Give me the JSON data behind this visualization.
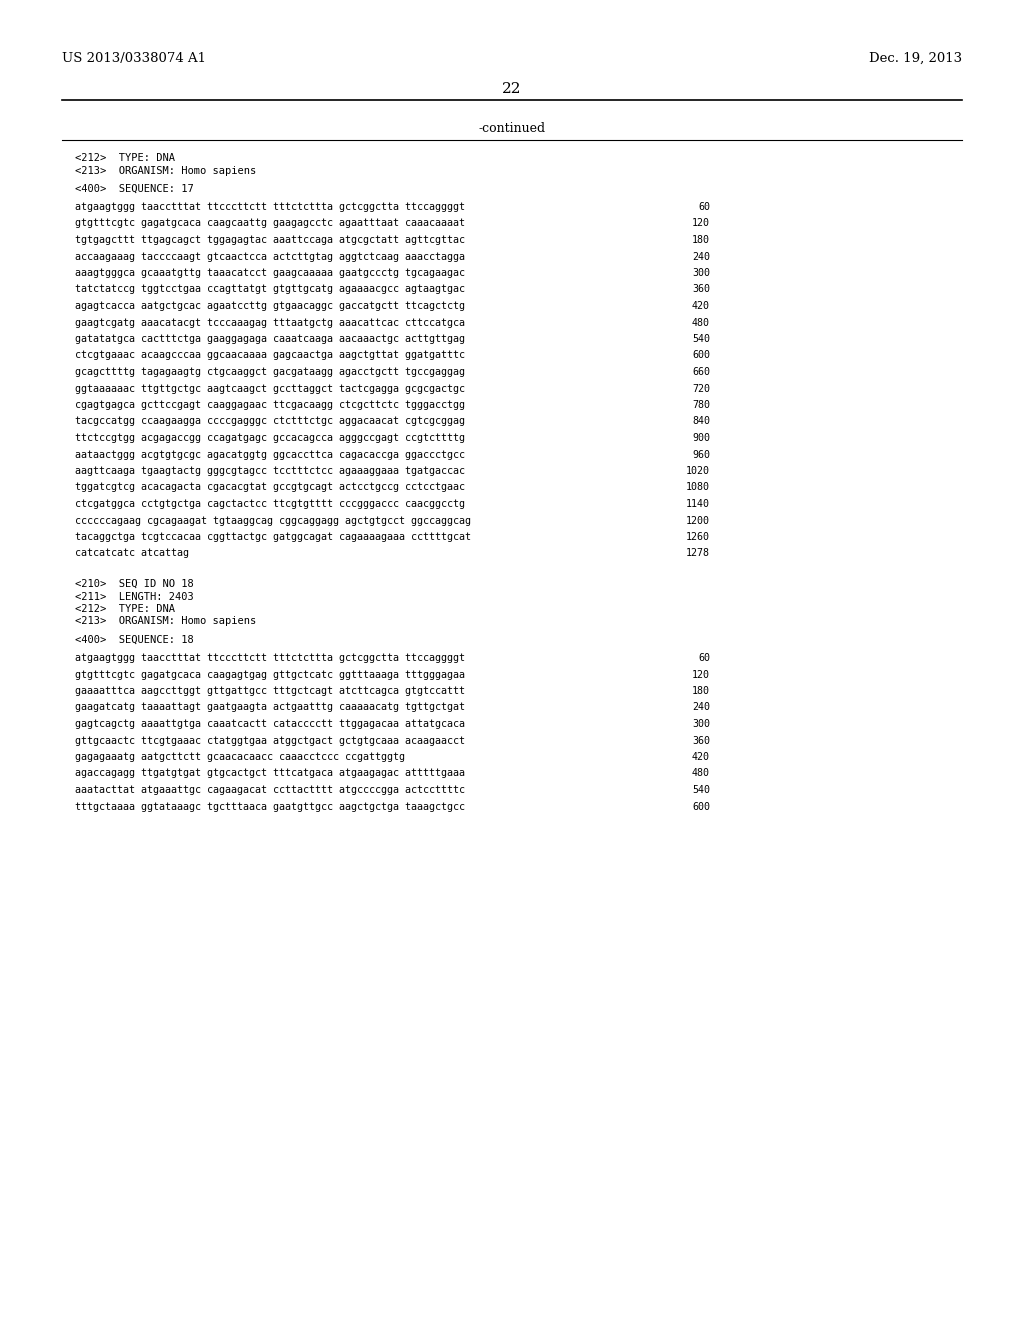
{
  "page_number": "22",
  "left_header": "US 2013/0338074 A1",
  "right_header": "Dec. 19, 2013",
  "continued_label": "-continued",
  "background_color": "#ffffff",
  "text_color": "#000000",
  "sections": [
    {
      "type": "meta",
      "lines": [
        "<212>  TYPE: DNA",
        "<213>  ORGANISM: Homo sapiens"
      ]
    },
    {
      "type": "sequence_header",
      "line": "<400>  SEQUENCE: 17"
    },
    {
      "type": "sequence",
      "entries": [
        [
          "atgaagtggg taacctttat ttcccttctt tttctcttta gctcggctta ttccaggggt",
          "60"
        ],
        [
          "gtgtttcgtc gagatgcaca caagcaattg gaagagcctc agaatttaat caaacaaaat",
          "120"
        ],
        [
          "tgtgagcttt ttgagcagct tggagagtac aaattccaga atgcgctatt agttcgttac",
          "180"
        ],
        [
          "accaagaaag taccccaagt gtcaactcca actcttgtag aggtctcaag aaacctagga",
          "240"
        ],
        [
          "aaagtgggca gcaaatgttg taaacatcct gaagcaaaaa gaatgccctg tgcagaagac",
          "300"
        ],
        [
          "tatctatccg tggtcctgaa ccagttatgt gtgttgcatg agaaaacgcc agtaagtgac",
          "360"
        ],
        [
          "agagtcacca aatgctgcac agaatccttg gtgaacaggc gaccatgctt ttcagctctg",
          "420"
        ],
        [
          "gaagtcgatg aaacatacgt tcccaaagag tttaatgctg aaacattcac cttccatgca",
          "480"
        ],
        [
          "gatatatgca cactttctga gaaggagaga caaatcaaga aacaaactgc acttgttgag",
          "540"
        ],
        [
          "ctcgtgaaac acaagcccaa ggcaacaaaa gagcaactga aagctgttat ggatgatttc",
          "600"
        ],
        [
          "gcagcttttg tagagaagtg ctgcaaggct gacgataagg agacctgctt tgccgaggag",
          "660"
        ],
        [
          "ggtaaaaaac ttgttgctgc aagtcaagct gccttaggct tactcgagga gcgcgactgc",
          "720"
        ],
        [
          "cgagtgagca gcttccgagt caaggagaac ttcgacaagg ctcgcttctc tgggacctgg",
          "780"
        ],
        [
          "tacgccatgg ccaagaagga ccccgagggc ctctttctgc aggacaacat cgtcgcggag",
          "840"
        ],
        [
          "ttctccgtgg acgagaccgg ccagatgagc gccacagcca agggccgagt ccgtcttttg",
          "900"
        ],
        [
          "aataactggg acgtgtgcgc agacatggtg ggcaccttca cagacaccga ggaccctgcc",
          "960"
        ],
        [
          "aagttcaaga tgaagtactg gggcgtagcc tcctttctcc agaaaggaaa tgatgaccac",
          "1020"
        ],
        [
          "tggatcgtcg acacagacta cgacacgtat gccgtgcagt actcctgccg cctcctgaac",
          "1080"
        ],
        [
          "ctcgatggca cctgtgctga cagctactcc ttcgtgtttt cccgggaccc caacggcctg",
          "1140"
        ],
        [
          "ccccccagaag cgcagaagat tgtaaggcag cggcaggagg agctgtgcct ggccaggcag",
          "1200"
        ],
        [
          "tacaggctga tcgtccacaa cggttactgc gatggcagat cagaaaagaaa ccttttgcat",
          "1260"
        ],
        [
          "catcatcatc atcattag",
          "1278"
        ]
      ]
    },
    {
      "type": "meta2",
      "lines": [
        "<210>  SEQ ID NO 18",
        "<211>  LENGTH: 2403",
        "<212>  TYPE: DNA",
        "<213>  ORGANISM: Homo sapiens"
      ]
    },
    {
      "type": "sequence_header2",
      "line": "<400>  SEQUENCE: 18"
    },
    {
      "type": "sequence2",
      "entries": [
        [
          "atgaagtggg taacctttat ttcccttctt tttctcttta gctcggctta ttccaggggt",
          "60"
        ],
        [
          "gtgtttcgtc gagatgcaca caagagtgag gttgctcatc ggtttaaaga tttgggagaa",
          "120"
        ],
        [
          "gaaaatttca aagccttggt gttgattgcc tttgctcagt atcttcagca gtgtccattt",
          "180"
        ],
        [
          "gaagatcatg taaaattagt gaatgaagta actgaatttg caaaaacatg tgttgctgat",
          "240"
        ],
        [
          "gagtcagctg aaaattgtga caaatcactt catacccctt ttggagacaa attatgcaca",
          "300"
        ],
        [
          "gttgcaactc ttcgtgaaac ctatggtgaa atggctgact gctgtgcaaa acaagaacct",
          "360"
        ],
        [
          "gagagaaatg aatgcttctt gcaacacaacc caaacctccc ccgattggtg",
          "420"
        ],
        [
          "agaccagagg ttgatgtgat gtgcactgct tttcatgaca atgaagagac atttttgaaa",
          "480"
        ],
        [
          "aaatacttat atgaaattgc cagaagacat ccttactttt atgccccgga actccttttc",
          "540"
        ],
        [
          "tttgctaaaa ggtataaagc tgctttaaca gaatgttgcc aagctgctga taaagctgcc",
          "600"
        ]
      ]
    }
  ]
}
